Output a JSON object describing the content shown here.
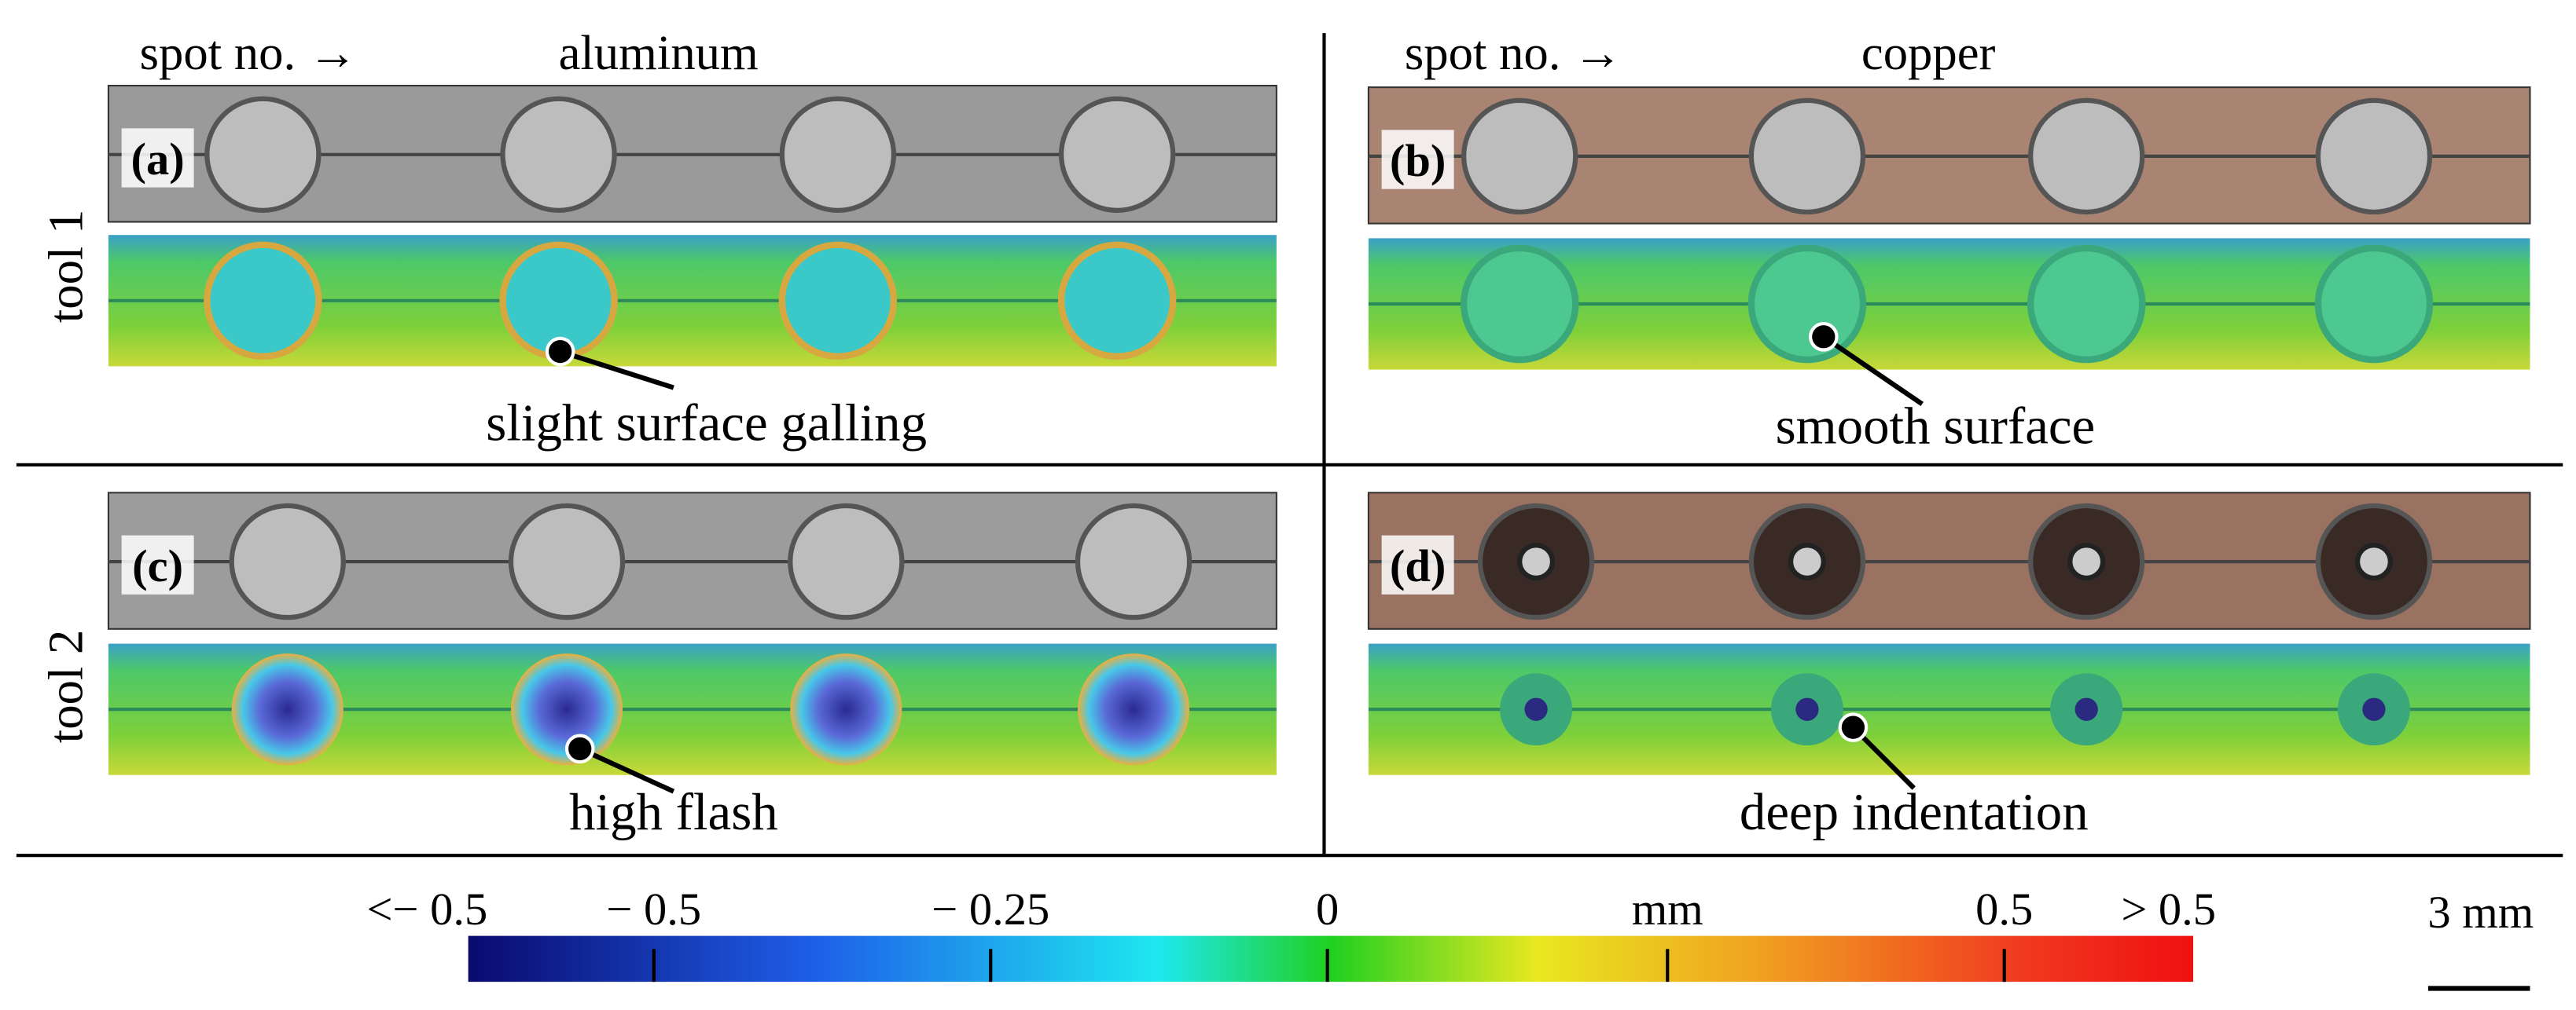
{
  "column_headers": [
    {
      "spot": "spot no. →",
      "material": "aluminum"
    },
    {
      "spot": "spot no. →",
      "material": "copper"
    }
  ],
  "row_labels": [
    "tool 1",
    "tool 2"
  ],
  "panels": [
    {
      "label": "(a)",
      "annotation": "slight surface galling"
    },
    {
      "label": "(b)",
      "annotation": "smooth surface"
    },
    {
      "label": "(c)",
      "annotation": "high flash"
    },
    {
      "label": "(d)",
      "annotation": "deep indentation"
    }
  ],
  "colorbar": {
    "labels": [
      "<− 0.5",
      "− 0.5",
      "− 0.25",
      "0",
      "mm",
      "0.5",
      "> 0.5"
    ]
  },
  "scale_bar": "3 mm"
}
